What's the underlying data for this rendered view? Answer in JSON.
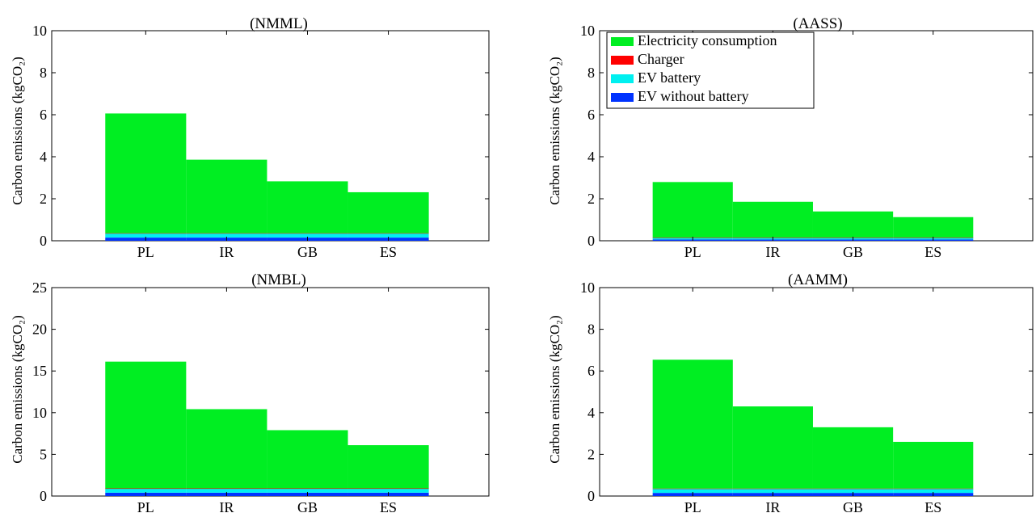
{
  "colors": {
    "electricity": "#00ee22",
    "charger": "#ff0000",
    "ev_battery": "#00f0f0",
    "ev_without_battery": "#0033ff",
    "axis": "#000000",
    "background": "#ffffff"
  },
  "legend": {
    "placement": "top-left",
    "items": [
      {
        "label": "Electricity consumption",
        "color_key": "electricity"
      },
      {
        "label": "Charger",
        "color_key": "charger"
      },
      {
        "label": "EV battery",
        "color_key": "ev_battery"
      },
      {
        "label": "EV without battery",
        "color_key": "ev_without_battery"
      }
    ]
  },
  "chart_data": [
    {
      "id": "nmml",
      "type": "bar",
      "stacked": true,
      "title": "(NMML)",
      "ylabel": "Carbon emissions (kgCO₂)",
      "xlabel": "",
      "ylim": [
        0,
        10
      ],
      "yticks": [
        0,
        2,
        4,
        6,
        8,
        10
      ],
      "categories": [
        "PL",
        "IR",
        "GB",
        "ES"
      ],
      "series": [
        {
          "name": "EV without battery",
          "color_key": "ev_without_battery",
          "values": [
            0.15,
            0.15,
            0.15,
            0.15
          ]
        },
        {
          "name": "EV battery",
          "color_key": "ev_battery",
          "values": [
            0.2,
            0.2,
            0.2,
            0.2
          ]
        },
        {
          "name": "Charger",
          "color_key": "charger",
          "values": [
            0.01,
            0.01,
            0.01,
            0.01
          ]
        },
        {
          "name": "Electricity consumption",
          "color_key": "electricity",
          "values": [
            5.7,
            3.5,
            2.47,
            1.95
          ]
        }
      ]
    },
    {
      "id": "aass",
      "type": "bar",
      "stacked": true,
      "title": "(AASS)",
      "ylabel": "Carbon emissions (kgCO₂)",
      "xlabel": "",
      "ylim": [
        0,
        10
      ],
      "yticks": [
        0,
        2,
        4,
        6,
        8,
        10
      ],
      "categories": [
        "PL",
        "IR",
        "GB",
        "ES"
      ],
      "legend": true,
      "series": [
        {
          "name": "EV without battery",
          "color_key": "ev_without_battery",
          "values": [
            0.06,
            0.06,
            0.06,
            0.06
          ]
        },
        {
          "name": "EV battery",
          "color_key": "ev_battery",
          "values": [
            0.09,
            0.09,
            0.09,
            0.09
          ]
        },
        {
          "name": "Charger",
          "color_key": "charger",
          "values": [
            0.005,
            0.005,
            0.005,
            0.005
          ]
        },
        {
          "name": "Electricity consumption",
          "color_key": "electricity",
          "values": [
            2.64,
            1.7,
            1.24,
            0.97
          ]
        }
      ]
    },
    {
      "id": "nmbl",
      "type": "bar",
      "stacked": true,
      "title": "(NMBL)",
      "ylabel": "Carbon emissions (kgCO₂)",
      "xlabel": "",
      "ylim": [
        0,
        25
      ],
      "yticks": [
        0,
        5,
        10,
        15,
        20,
        25
      ],
      "categories": [
        "PL",
        "IR",
        "GB",
        "ES"
      ],
      "series": [
        {
          "name": "EV without battery",
          "color_key": "ev_without_battery",
          "values": [
            0.4,
            0.4,
            0.4,
            0.4
          ]
        },
        {
          "name": "EV battery",
          "color_key": "ev_battery",
          "values": [
            0.5,
            0.5,
            0.5,
            0.5
          ]
        },
        {
          "name": "Charger",
          "color_key": "charger",
          "values": [
            0.02,
            0.02,
            0.02,
            0.02
          ]
        },
        {
          "name": "Electricity consumption",
          "color_key": "electricity",
          "values": [
            15.2,
            9.5,
            6.98,
            5.18
          ]
        }
      ]
    },
    {
      "id": "aamm",
      "type": "bar",
      "stacked": true,
      "title": "(AAMM)",
      "ylabel": "Carbon emissions (kgCO₂)",
      "xlabel": "",
      "ylim": [
        0,
        10
      ],
      "yticks": [
        0,
        2,
        4,
        6,
        8,
        10
      ],
      "categories": [
        "PL",
        "IR",
        "GB",
        "ES"
      ],
      "series": [
        {
          "name": "EV without battery",
          "color_key": "ev_without_battery",
          "values": [
            0.15,
            0.15,
            0.15,
            0.15
          ]
        },
        {
          "name": "EV battery",
          "color_key": "ev_battery",
          "values": [
            0.2,
            0.2,
            0.2,
            0.2
          ]
        },
        {
          "name": "Charger",
          "color_key": "charger",
          "values": [
            0.01,
            0.01,
            0.01,
            0.01
          ]
        },
        {
          "name": "Electricity consumption",
          "color_key": "electricity",
          "values": [
            6.18,
            3.94,
            2.94,
            2.24
          ]
        }
      ]
    }
  ]
}
